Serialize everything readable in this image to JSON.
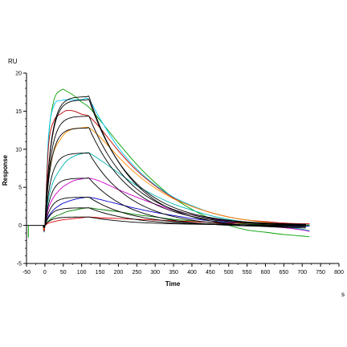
{
  "chart_data": {
    "type": "line",
    "xlabel": "Time",
    "ylabel": "Response",
    "x_unit": "s",
    "y_unit": "RU",
    "xlim": [
      -50,
      800
    ],
    "ylim": [
      -5,
      20
    ],
    "x_ticks": [
      -50,
      0,
      50,
      100,
      150,
      200,
      250,
      300,
      350,
      400,
      450,
      500,
      550,
      600,
      650,
      700,
      750,
      800
    ],
    "y_ticks": [
      -5,
      0,
      5,
      10,
      15,
      20
    ],
    "grid": false,
    "legend": "none",
    "injection_end": 120,
    "series": [
      {
        "color": "#00a000",
        "fit_color": "#000000",
        "values": [
          [
            -5,
            0
          ],
          [
            0,
            0
          ],
          [
            10,
            11.5
          ],
          [
            25,
            16.5
          ],
          [
            45,
            17.8
          ],
          [
            60,
            17.6
          ],
          [
            80,
            17.0
          ],
          [
            100,
            16.2
          ],
          [
            120,
            15.5
          ],
          [
            150,
            13.8
          ],
          [
            200,
            10.8
          ],
          [
            250,
            8.0
          ],
          [
            300,
            5.6
          ],
          [
            350,
            3.6
          ],
          [
            400,
            2.1
          ],
          [
            450,
            0.9
          ],
          [
            500,
            0.0
          ],
          [
            550,
            -0.6
          ],
          [
            600,
            -0.9
          ],
          [
            650,
            -1.2
          ],
          [
            700,
            -1.4
          ],
          [
            720,
            -1.5
          ]
        ]
      },
      {
        "color": "#00c8ff",
        "fit_color": "#000000",
        "values": [
          [
            -5,
            0
          ],
          [
            0,
            0
          ],
          [
            10,
            11.8
          ],
          [
            25,
            15.8
          ],
          [
            45,
            16.4
          ],
          [
            60,
            16.5
          ],
          [
            80,
            16.5
          ],
          [
            100,
            16.5
          ],
          [
            120,
            16.5
          ],
          [
            150,
            14.0
          ],
          [
            200,
            10.2
          ],
          [
            250,
            7.4
          ],
          [
            300,
            5.3
          ],
          [
            350,
            3.7
          ],
          [
            400,
            2.6
          ],
          [
            450,
            1.7
          ],
          [
            500,
            1.1
          ],
          [
            550,
            0.7
          ],
          [
            600,
            0.4
          ],
          [
            650,
            0.2
          ],
          [
            700,
            0.1
          ],
          [
            720,
            0.1
          ]
        ]
      },
      {
        "color": "#c00000",
        "fit_color": "#000000",
        "values": [
          [
            -5,
            0
          ],
          [
            0,
            0
          ],
          [
            10,
            10.5
          ],
          [
            25,
            13.8
          ],
          [
            45,
            14.7
          ],
          [
            60,
            15.1
          ],
          [
            80,
            15.0
          ],
          [
            100,
            14.6
          ],
          [
            120,
            14.3
          ],
          [
            150,
            12.8
          ],
          [
            200,
            9.8
          ],
          [
            250,
            7.2
          ],
          [
            300,
            5.2
          ],
          [
            350,
            3.6
          ],
          [
            400,
            2.5
          ],
          [
            450,
            1.7
          ],
          [
            500,
            1.1
          ],
          [
            550,
            0.7
          ],
          [
            600,
            0.5
          ],
          [
            650,
            0.3
          ],
          [
            700,
            0.2
          ],
          [
            720,
            0.2
          ]
        ]
      },
      {
        "color": "#ff8c00",
        "fit_color": "#000000",
        "values": [
          [
            -5,
            0
          ],
          [
            0,
            0
          ],
          [
            10,
            6.5
          ],
          [
            25,
            9.8
          ],
          [
            45,
            11.5
          ],
          [
            60,
            12.3
          ],
          [
            80,
            12.7
          ],
          [
            100,
            12.8
          ],
          [
            120,
            12.8
          ],
          [
            150,
            11.6
          ],
          [
            200,
            9.0
          ],
          [
            250,
            6.7
          ],
          [
            300,
            4.9
          ],
          [
            350,
            3.5
          ],
          [
            400,
            2.5
          ],
          [
            450,
            1.7
          ],
          [
            500,
            1.1
          ],
          [
            550,
            0.7
          ],
          [
            600,
            0.4
          ],
          [
            650,
            0.2
          ],
          [
            700,
            0.1
          ],
          [
            720,
            0.0
          ]
        ]
      },
      {
        "color": "#00b4b4",
        "fit_color": "#000000",
        "values": [
          [
            -5,
            0
          ],
          [
            0,
            0
          ],
          [
            10,
            3.6
          ],
          [
            25,
            6.0
          ],
          [
            45,
            7.6
          ],
          [
            60,
            8.5
          ],
          [
            80,
            9.1
          ],
          [
            100,
            9.4
          ],
          [
            120,
            9.5
          ],
          [
            150,
            8.6
          ],
          [
            200,
            6.9
          ],
          [
            250,
            5.2
          ],
          [
            300,
            3.9
          ],
          [
            350,
            2.8
          ],
          [
            400,
            2.0
          ],
          [
            450,
            1.3
          ],
          [
            500,
            0.8
          ],
          [
            550,
            0.4
          ],
          [
            600,
            0.1
          ],
          [
            650,
            -0.2
          ],
          [
            700,
            -0.5
          ],
          [
            720,
            -0.7
          ]
        ]
      },
      {
        "color": "#cc00cc",
        "fit_color": "#000000",
        "values": [
          [
            -5,
            0
          ],
          [
            0,
            0
          ],
          [
            10,
            2.3
          ],
          [
            25,
            3.8
          ],
          [
            45,
            4.9
          ],
          [
            60,
            5.4
          ],
          [
            80,
            5.9
          ],
          [
            100,
            6.1
          ],
          [
            120,
            6.2
          ],
          [
            150,
            5.8
          ],
          [
            200,
            4.7
          ],
          [
            250,
            3.7
          ],
          [
            300,
            2.8
          ],
          [
            350,
            2.0
          ],
          [
            400,
            1.4
          ],
          [
            450,
            0.9
          ],
          [
            500,
            0.5
          ],
          [
            550,
            0.2
          ],
          [
            600,
            -0.1
          ],
          [
            650,
            -0.3
          ],
          [
            700,
            -0.6
          ],
          [
            720,
            -0.8
          ]
        ]
      },
      {
        "color": "#0000cc",
        "fit_color": "#000000",
        "values": [
          [
            -5,
            0
          ],
          [
            0,
            0
          ],
          [
            10,
            1.2
          ],
          [
            25,
            2.1
          ],
          [
            45,
            2.8
          ],
          [
            60,
            3.1
          ],
          [
            80,
            3.4
          ],
          [
            100,
            3.6
          ],
          [
            120,
            3.7
          ],
          [
            150,
            3.4
          ],
          [
            200,
            2.8
          ],
          [
            250,
            2.2
          ],
          [
            300,
            1.7
          ],
          [
            350,
            1.3
          ],
          [
            400,
            0.9
          ],
          [
            450,
            0.6
          ],
          [
            500,
            0.4
          ],
          [
            550,
            0.2
          ],
          [
            600,
            0.1
          ],
          [
            650,
            0.0
          ],
          [
            700,
            -0.1
          ],
          [
            720,
            -0.1
          ]
        ]
      },
      {
        "color": "#008000",
        "fit_color": "#000000",
        "values": [
          [
            -5,
            0
          ],
          [
            0,
            0
          ],
          [
            10,
            0.6
          ],
          [
            25,
            1.1
          ],
          [
            45,
            1.5
          ],
          [
            60,
            1.8
          ],
          [
            80,
            2.0
          ],
          [
            100,
            2.2
          ],
          [
            120,
            2.3
          ],
          [
            150,
            2.1
          ],
          [
            200,
            1.8
          ],
          [
            250,
            1.4
          ],
          [
            300,
            1.1
          ],
          [
            350,
            0.8
          ],
          [
            400,
            0.6
          ],
          [
            450,
            0.4
          ],
          [
            500,
            0.3
          ],
          [
            550,
            0.2
          ],
          [
            600,
            0.1
          ],
          [
            650,
            0.1
          ],
          [
            700,
            0.0
          ],
          [
            720,
            0.0
          ]
        ]
      },
      {
        "color": "#e00000",
        "fit_color": "#000000",
        "values": [
          [
            -5,
            0
          ],
          [
            0,
            0
          ],
          [
            10,
            0.3
          ],
          [
            25,
            0.5
          ],
          [
            45,
            0.7
          ],
          [
            60,
            0.8
          ],
          [
            80,
            0.9
          ],
          [
            100,
            1.0
          ],
          [
            120,
            1.1
          ],
          [
            150,
            1.0
          ],
          [
            200,
            0.9
          ],
          [
            250,
            0.8
          ],
          [
            300,
            0.7
          ],
          [
            350,
            0.6
          ],
          [
            400,
            0.5
          ],
          [
            450,
            0.4
          ],
          [
            500,
            0.3
          ],
          [
            550,
            0.3
          ],
          [
            600,
            0.2
          ],
          [
            650,
            0.2
          ],
          [
            700,
            0.2
          ],
          [
            720,
            0.2
          ]
        ]
      }
    ]
  }
}
